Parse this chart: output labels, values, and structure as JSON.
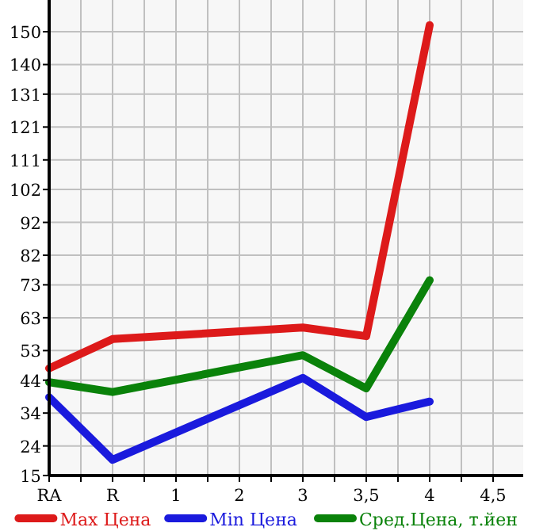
{
  "chart_data": {
    "type": "line",
    "categories": [
      "RA",
      "R",
      "1",
      "2",
      "3",
      "3,5",
      "4",
      "4,5"
    ],
    "series": [
      {
        "name": "Max Цена",
        "color": "#dd1a1a",
        "values": [
          47.6,
          56.5,
          null,
          null,
          60,
          57.4,
          152,
          null
        ]
      },
      {
        "name": "Min Цена",
        "color": "#1a1add",
        "values": [
          38.8,
          19.8,
          null,
          null,
          44.7,
          32.8,
          37.5,
          null
        ]
      },
      {
        "name": "Сред.Цена, т.йен",
        "color": "#0a820a",
        "values": [
          43.4,
          40.4,
          null,
          null,
          51.6,
          41.5,
          74.4,
          null
        ]
      }
    ],
    "ylim": [
      15,
      159.64
    ],
    "yticks": [
      15,
      24,
      34,
      44,
      53,
      63,
      73,
      82,
      92,
      102,
      111,
      121,
      131,
      140,
      150
    ],
    "grid": true,
    "legend": "bottom",
    "marker": "none",
    "line_style": "solid"
  }
}
